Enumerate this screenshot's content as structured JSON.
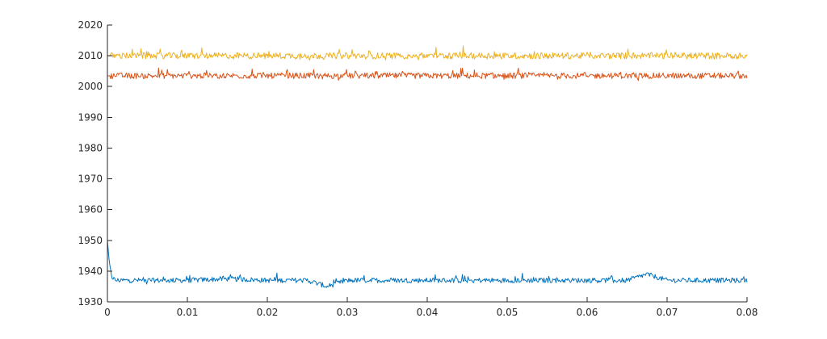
{
  "chart_data": {
    "type": "line",
    "title": "",
    "xlabel": "",
    "ylabel": "",
    "xlim": [
      0,
      0.08
    ],
    "ylim": [
      1930,
      2020
    ],
    "x_ticks": [
      0,
      0.01,
      0.02,
      0.03,
      0.04,
      0.05,
      0.06,
      0.07,
      0.08
    ],
    "x_tick_labels": [
      "0",
      "0.01",
      "0.02",
      "0.03",
      "0.04",
      "0.05",
      "0.06",
      "0.07",
      "0.08"
    ],
    "y_ticks": [
      1930,
      1940,
      1950,
      1960,
      1970,
      1980,
      1990,
      2000,
      2010,
      2020
    ],
    "y_tick_labels": [
      "1930",
      "1940",
      "1950",
      "1960",
      "1970",
      "1980",
      "1990",
      "2000",
      "2010",
      "2020"
    ],
    "grid": false,
    "legend": "none",
    "series": [
      {
        "color": "#0072BD",
        "x": [
          0,
          0.0002,
          0.0004,
          0.0006,
          0.001,
          0.002,
          0.005,
          0.01,
          0.015,
          0.02,
          0.025,
          0.0275,
          0.03,
          0.035,
          0.04,
          0.045,
          0.05,
          0.055,
          0.06,
          0.065,
          0.0675,
          0.07,
          0.075,
          0.08
        ],
        "y": [
          1950,
          1944,
          1940,
          1938,
          1937,
          1937,
          1937,
          1937,
          1937.5,
          1937,
          1937,
          1935,
          1937,
          1937,
          1937,
          1937,
          1937,
          1937,
          1937,
          1937,
          1939,
          1937,
          1937,
          1937
        ],
        "noise_amplitude": 1
      },
      {
        "color": "#D95319",
        "x": [
          0,
          0.01,
          0.02,
          0.03,
          0.04,
          0.05,
          0.06,
          0.07,
          0.08
        ],
        "y": [
          2003.5,
          2003.5,
          2003.5,
          2003.5,
          2003.5,
          2003.5,
          2003.5,
          2003.5,
          2003.5
        ],
        "noise_amplitude": 1.2
      },
      {
        "color": "#EDB120",
        "x": [
          0,
          0.01,
          0.02,
          0.03,
          0.04,
          0.05,
          0.06,
          0.07,
          0.08
        ],
        "y": [
          2010,
          2010,
          2010,
          2010,
          2010,
          2010,
          2010,
          2010,
          2010
        ],
        "noise_amplitude": 1.3
      }
    ]
  }
}
